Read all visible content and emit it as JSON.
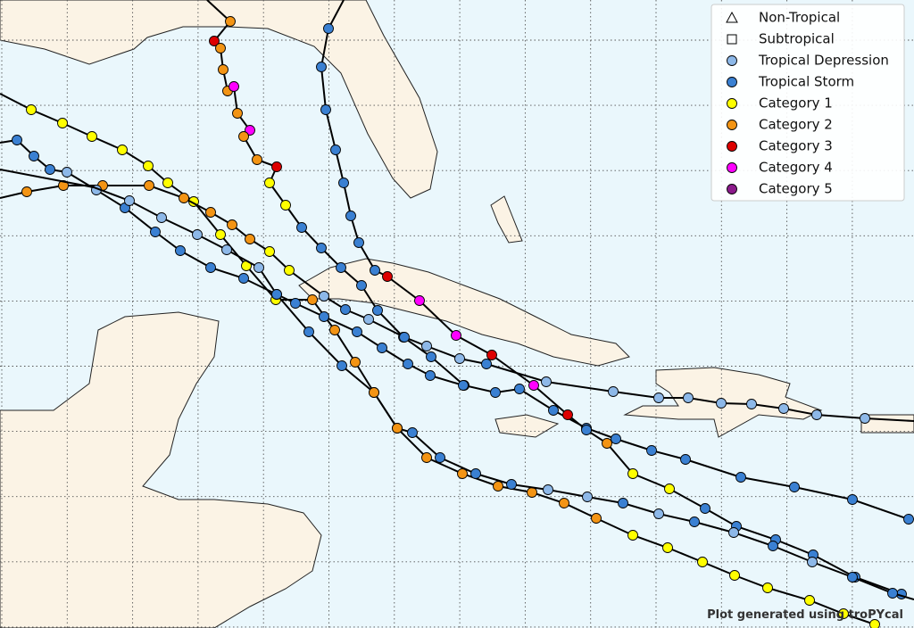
{
  "legend": [
    {
      "label": "Non-Tropical"
    },
    {
      "label": "Subtropical"
    },
    {
      "label": "Tropical Depression",
      "color": "#8db8e8"
    },
    {
      "label": "Tropical Storm",
      "color": "#3a80d2"
    },
    {
      "label": "Category 1",
      "color": "#ffff00"
    },
    {
      "label": "Category 2",
      "color": "#f39414"
    },
    {
      "label": "Category 3",
      "color": "#dd0000"
    },
    {
      "label": "Category 4",
      "color": "#ff00ff"
    },
    {
      "label": "Category 5",
      "color": "#8b1a8b"
    }
  ],
  "credit": "Plot generated using troPYcal"
}
